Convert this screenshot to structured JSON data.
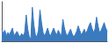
{
  "chart_data": {
    "type": "area",
    "values": [
      0.5,
      0.42,
      0.48,
      0.38,
      0.44,
      0.4,
      0.46,
      0.52,
      0.38,
      0.42,
      0.46,
      0.4,
      0.36,
      0.42,
      0.38,
      0.44,
      0.76,
      0.5,
      0.36,
      0.32,
      0.9,
      0.58,
      0.4,
      0.36,
      0.48,
      0.85,
      0.62,
      0.44,
      0.38,
      0.44,
      0.52,
      0.42,
      0.38,
      0.46,
      0.52,
      0.44,
      0.4,
      0.48,
      0.42,
      0.38,
      0.68,
      0.52,
      0.42,
      0.38,
      0.44,
      0.5,
      0.42,
      0.36,
      0.4,
      0.46,
      0.56,
      0.48,
      0.4,
      0.44,
      0.5,
      0.42,
      0.48,
      0.56,
      0.62,
      0.52,
      0.44,
      0.5,
      0.72,
      0.56,
      0.44,
      0.48,
      0.55,
      0.62,
      0.52,
      0.46
    ],
    "color": "#3a7abf",
    "ylim": [
      0.28,
      1.0
    ],
    "tick_labels": false,
    "grid": false
  }
}
